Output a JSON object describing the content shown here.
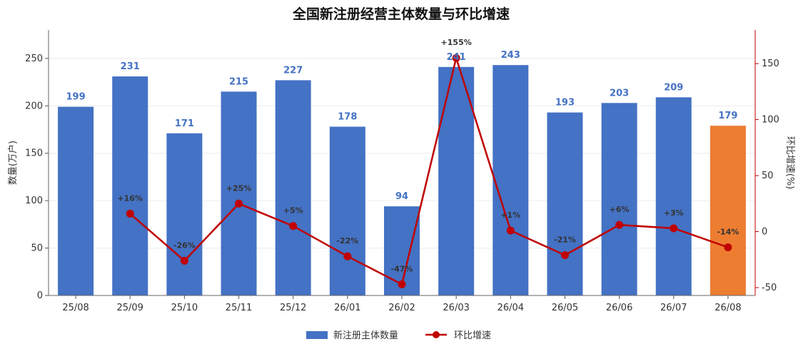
{
  "chart_data": {
    "type": "bar",
    "title": "全国新注册经营主体数量与环比增速",
    "categories": [
      "25/08",
      "25/09",
      "25/10",
      "25/11",
      "25/12",
      "26/01",
      "26/02",
      "26/03",
      "26/04",
      "26/05",
      "26/06",
      "26/07",
      "26/08"
    ],
    "series": [
      {
        "name": "新注册主体数量",
        "type": "bar",
        "axis": "left",
        "values": [
          199,
          231,
          171,
          215,
          227,
          178,
          94,
          241,
          243,
          193,
          203,
          209,
          179
        ],
        "color": "#4472c4",
        "highlight_color": "#ed7d31",
        "highlight_index": 12
      },
      {
        "name": "环比增速",
        "type": "line",
        "axis": "right",
        "points": [
          {
            "category": "25/09",
            "value": 16,
            "label": "+16%"
          },
          {
            "category": "25/10",
            "value": -26,
            "label": "-26%"
          },
          {
            "category": "25/11",
            "value": 25,
            "label": "+25%"
          },
          {
            "category": "25/12",
            "value": 5,
            "label": "+5%"
          },
          {
            "category": "26/01",
            "value": -22,
            "label": "-22%"
          },
          {
            "category": "26/02",
            "value": -47,
            "label": "-47%"
          },
          {
            "category": "26/03",
            "value": 155,
            "label": "+155%"
          },
          {
            "category": "26/04",
            "value": 1,
            "label": "+1%"
          },
          {
            "category": "26/05",
            "value": -21,
            "label": "-21%"
          },
          {
            "category": "26/06",
            "value": 6,
            "label": "+6%"
          },
          {
            "category": "26/07",
            "value": 3,
            "label": "+3%"
          },
          {
            "category": "26/08",
            "value": -14,
            "label": "-14%"
          }
        ],
        "color": "#c00000"
      }
    ],
    "y_left": {
      "label": "数量(万户)",
      "range": [
        0,
        280
      ],
      "ticks": [
        0,
        50,
        100,
        150,
        200,
        250
      ]
    },
    "y_right": {
      "label": "环比增速(%)",
      "range": [
        -57,
        180
      ],
      "ticks": [
        -50,
        0,
        50,
        100,
        150
      ]
    },
    "grid": true,
    "legend_position": "bottom-center"
  }
}
